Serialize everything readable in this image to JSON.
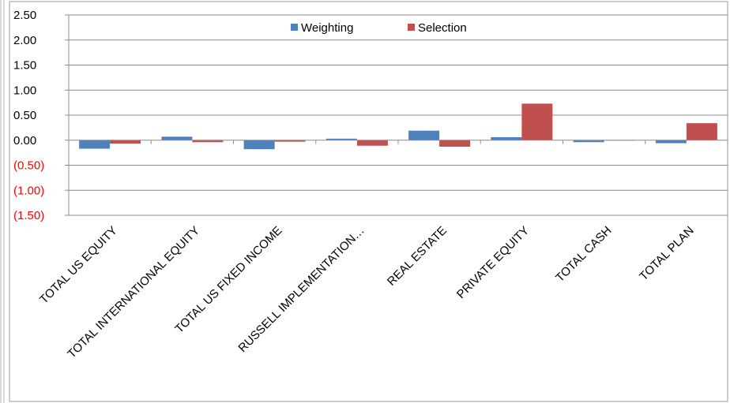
{
  "chart_data": {
    "type": "bar",
    "title": "",
    "xlabel": "",
    "ylabel": "",
    "categories": [
      "TOTAL US EQUITY",
      "TOTAL INTERNATIONAL EQUITY",
      "TOTAL US FIXED INCOME",
      "RUSSELL IMPLEMENTATION…",
      "REAL ESTATE",
      "PRIVATE EQUITY",
      "TOTAL CASH",
      "TOTAL PLAN"
    ],
    "series": [
      {
        "name": "Weighting",
        "color": "#4f81bd",
        "values": [
          -0.17,
          0.07,
          -0.18,
          0.03,
          0.19,
          0.06,
          -0.04,
          -0.06
        ]
      },
      {
        "name": "Selection",
        "color": "#c0504d",
        "values": [
          -0.07,
          -0.04,
          -0.03,
          -0.11,
          -0.13,
          0.73,
          0.0,
          0.34
        ]
      }
    ],
    "ylim": [
      -1.5,
      2.5
    ],
    "yticks": [
      2.5,
      2.0,
      1.5,
      1.0,
      0.5,
      0.0,
      -0.5,
      -1.0,
      -1.5
    ],
    "ytick_labels": [
      "2.50",
      "2.00",
      "1.50",
      "1.00",
      "0.50",
      "0.00",
      "(0.50)",
      "(1.00)",
      "(1.50)"
    ],
    "negative_tick_color": "#ff0000",
    "positive_tick_color": "#000000",
    "grid": true,
    "legend_position": "top-center"
  }
}
